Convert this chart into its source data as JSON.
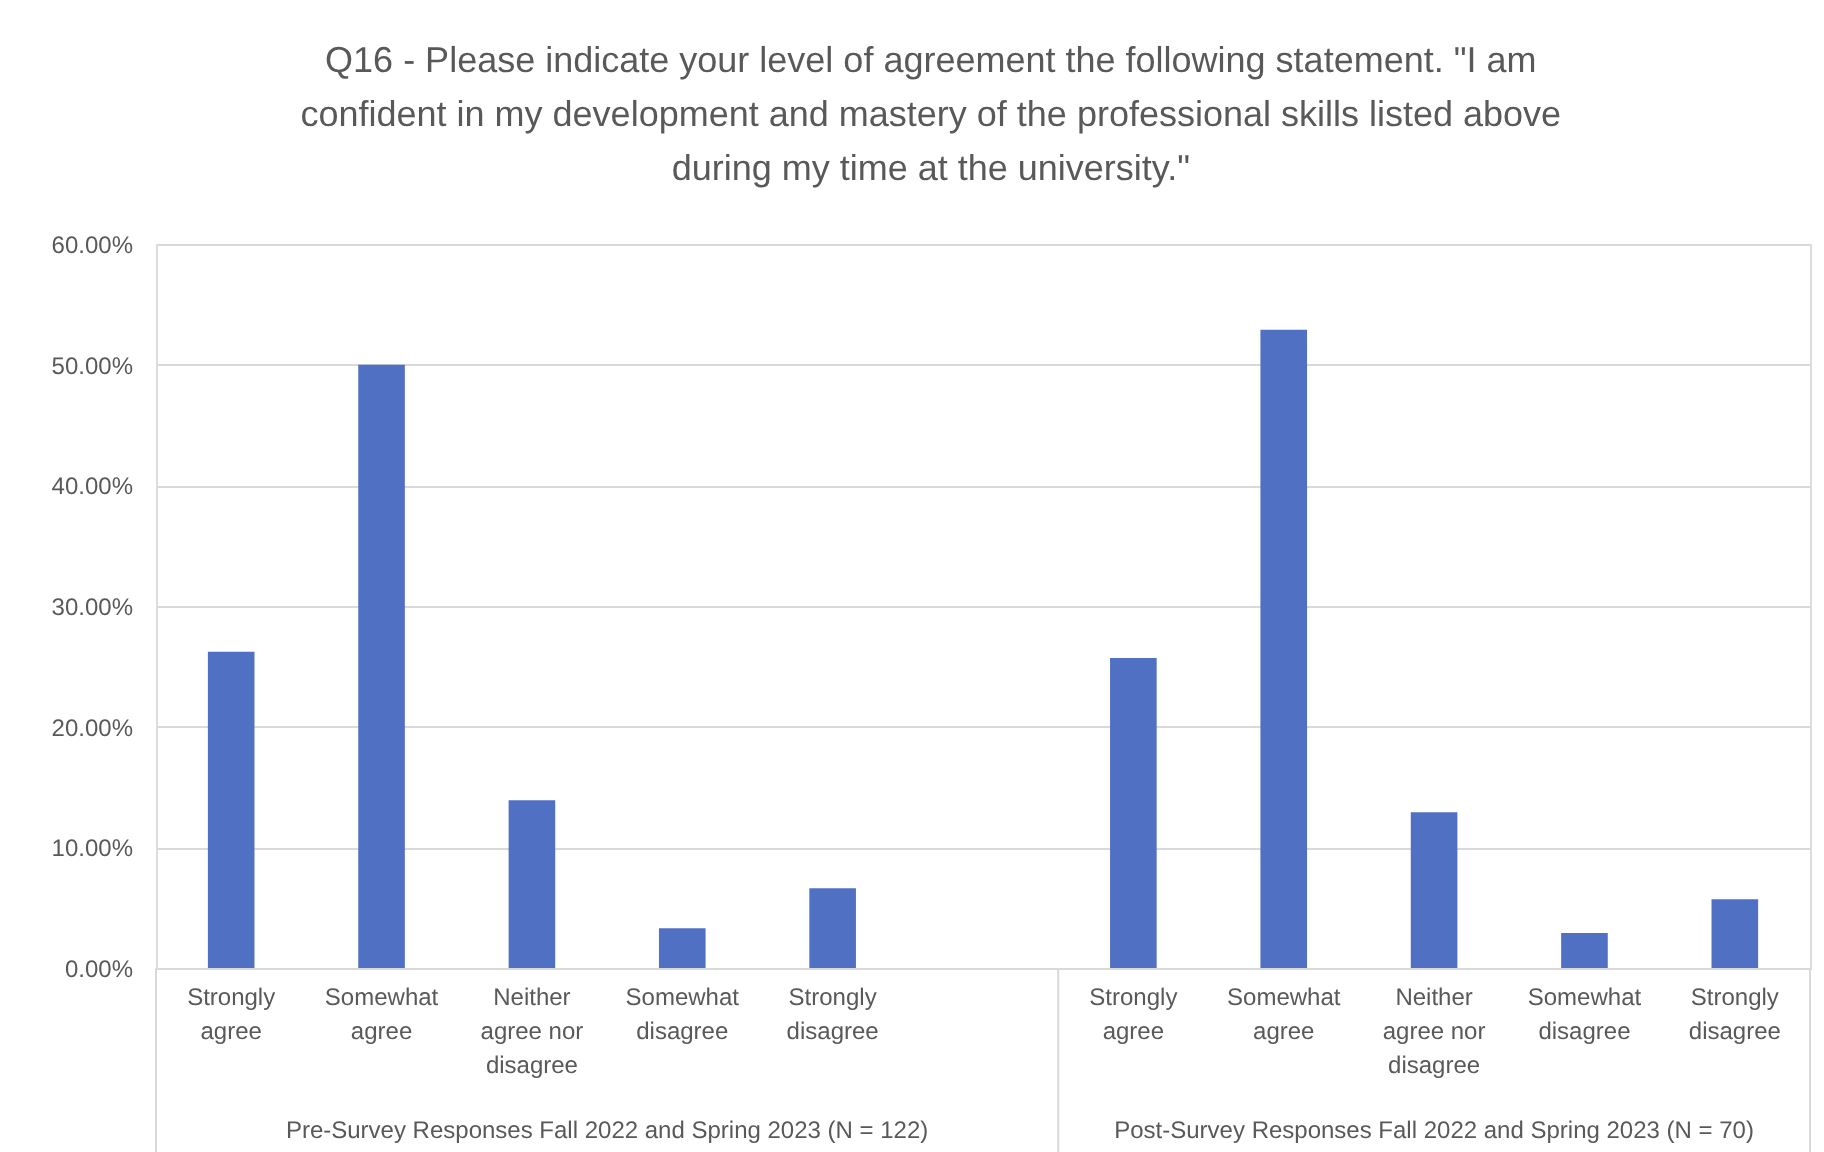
{
  "chart_data": {
    "type": "bar",
    "title": "Q16 - Please indicate your level of agreement the following statement. \"I am confident in my development and mastery of the professional skills listed above during my time at the university.\"",
    "categories": [
      "Strongly agree",
      "Somewhat agree",
      "Neither agree nor disagree",
      "Somewhat disagree",
      "Strongly disagree",
      null,
      "Strongly agree",
      "Somewhat agree",
      "Neither agree nor disagree",
      "Somewhat disagree",
      "Strongly disagree"
    ],
    "series": [
      {
        "color": "#5070c4",
        "values": [
          26.2,
          50.0,
          13.9,
          3.3,
          6.6,
          null,
          25.7,
          52.9,
          12.9,
          2.9,
          5.7
        ]
      }
    ],
    "ylim": [
      0,
      60
    ],
    "yticks": [
      {
        "value": 0,
        "label": "0.00%"
      },
      {
        "value": 10,
        "label": "10.00%"
      },
      {
        "value": 20,
        "label": "20.00%"
      },
      {
        "value": 30,
        "label": "30.00%"
      },
      {
        "value": 40,
        "label": "40.00%"
      },
      {
        "value": 50,
        "label": "50.00%"
      },
      {
        "value": 60,
        "label": "60.00%"
      }
    ],
    "grid": "y",
    "annotations": [
      "Pre-Survey Responses Fall 2022 and Spring 2023 (N = 122)",
      "Post-Survey Responses Fall 2022 and Spring 2023 (N = 70)"
    ]
  }
}
